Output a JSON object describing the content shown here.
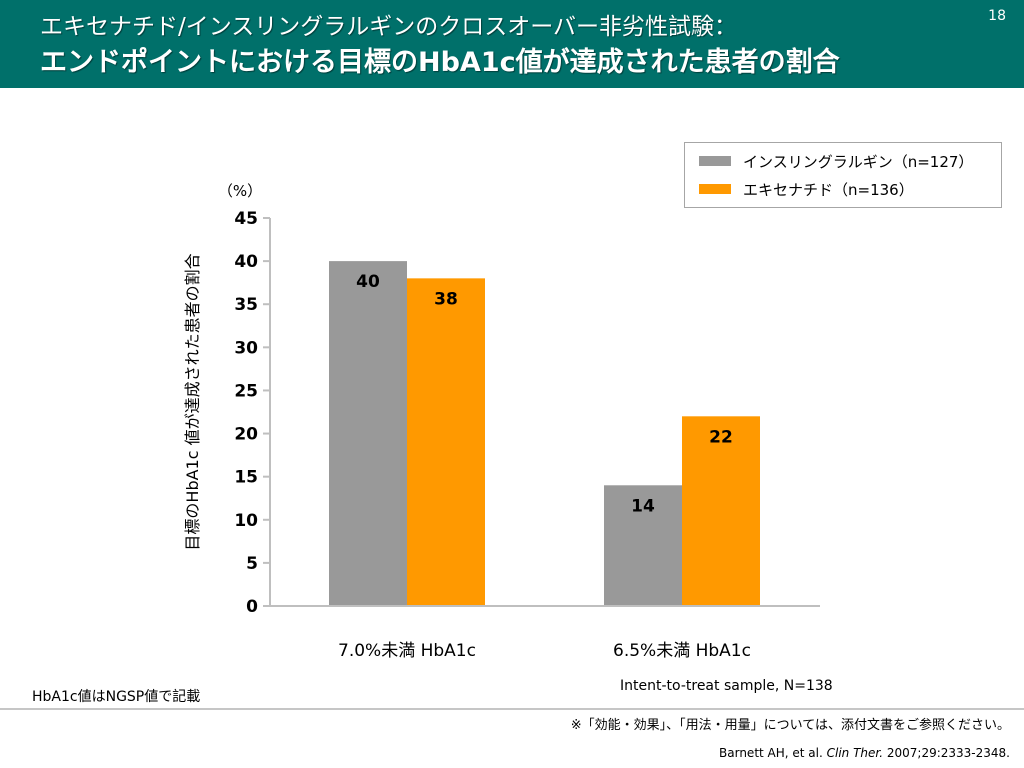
{
  "slide": {
    "page_number": "18",
    "title_line1": "エキセナチド/インスリングラルギンのクロスオーバー非劣性試験：",
    "title_line2": "エンドポイントにおける目標のHbA1c値が達成された患者の割合",
    "note_left": "HbA1c値はNGSP値で記載",
    "note_sample": "Intent-to-treat sample, N=138",
    "note_disclaimer": "※「効能・効果」、「用法・用量」については、添付文書をご参照ください。",
    "reference_authors": "Barnett AH, et al. ",
    "reference_journal": "Clin Ther.",
    "reference_detail": " 2007;29:2333-2348."
  },
  "colors": {
    "header_bg": "#00706a",
    "insulin_glargine": "#999999",
    "exenatide": "#ff9900"
  },
  "chart_data": {
    "type": "bar",
    "categories": [
      "7.0%未満 HbA1c",
      "6.5%未満 HbA1c"
    ],
    "series": [
      {
        "name": "インスリングラルギン（n=127）",
        "values": [
          40,
          14
        ],
        "color": "#999999"
      },
      {
        "name": "エキセナチド（n=136）",
        "values": [
          38,
          22
        ],
        "color": "#ff9900"
      }
    ],
    "ylabel": "目標のHbA1c 値が達成された患者の割合",
    "yunit": "（%）",
    "ylim": [
      0,
      45
    ],
    "yticks": [
      0,
      5,
      10,
      15,
      20,
      25,
      30,
      35,
      40,
      45
    ],
    "grid": false,
    "legend_position": "top-right"
  }
}
